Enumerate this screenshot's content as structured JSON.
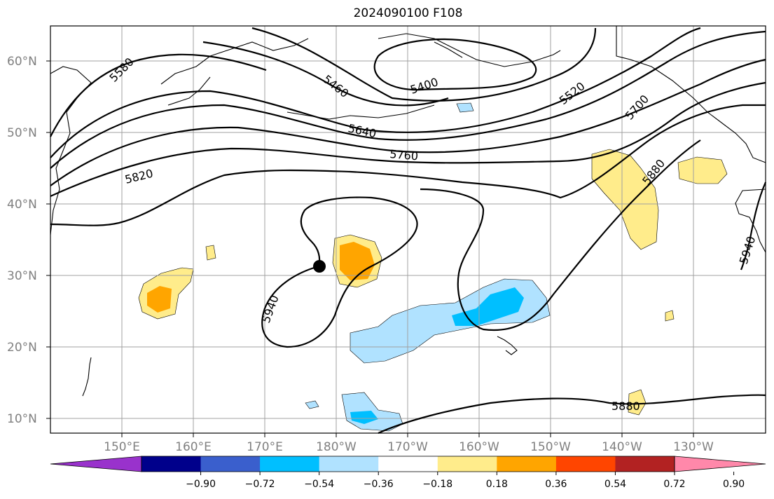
{
  "title": "2024090100 F108",
  "lat_labels": [
    "60°N",
    "50°N",
    "40°N",
    "30°N",
    "20°N",
    "10°N"
  ],
  "lon_labels": [
    "150°E",
    "160°E",
    "170°E",
    "180°W",
    "170°W",
    "160°W",
    "150°W",
    "140°W",
    "130°W"
  ],
  "contour_labels": [
    "5580",
    "5460",
    "5400",
    "5520",
    "5700",
    "5640",
    "5760",
    "5820",
    "5880",
    "5940",
    "5940",
    "5880"
  ],
  "colorbar": {
    "ticks": [
      "−0.90",
      "−0.72",
      "−0.54",
      "−0.36",
      "−0.18",
      "0.18",
      "0.36",
      "0.54",
      "0.72",
      "0.90"
    ],
    "colors": [
      "#9932cc",
      "#00008b",
      "#3a5fcd",
      "#00bfff",
      "#b0e2ff",
      "#ffffff",
      "#ffec8b",
      "#ffa500",
      "#ff4500",
      "#b22222",
      "#ff88aa"
    ]
  },
  "marker": "storm-center-dot"
}
